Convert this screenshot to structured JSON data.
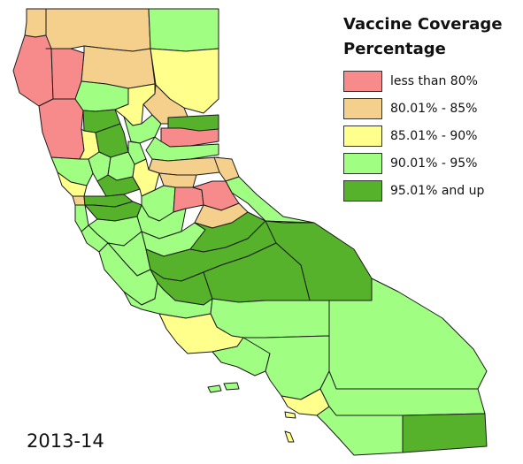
{
  "legend": {
    "title": "Vaccine Coverage",
    "subtitle": "Percentage",
    "items": [
      {
        "label": "less than 80%",
        "color": "#f78b8b"
      },
      {
        "label": "80.01% - 85%",
        "color": "#f5cf8c"
      },
      {
        "label": "85.01% - 90%",
        "color": "#ffff8c"
      },
      {
        "label": "90.01% - 95%",
        "color": "#a0ff82"
      },
      {
        "label": "95.01% and up",
        "color": "#56b22b"
      }
    ]
  },
  "year_label": "2013-14",
  "colors": {
    "outline": "#1a1a1a",
    "background": "#ffffff"
  }
}
